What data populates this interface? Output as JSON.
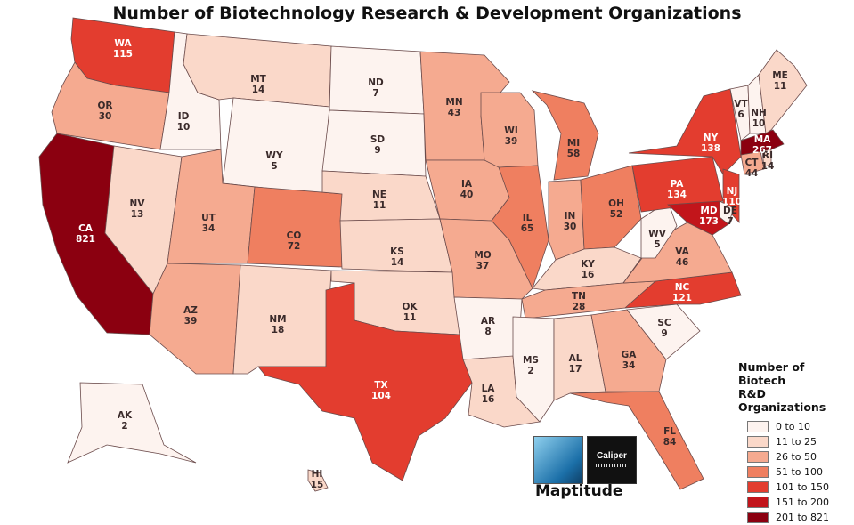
{
  "title": "Number of Biotechnology Research & Development Organizations",
  "legend": {
    "title_line1": "Number of Biotech",
    "title_line2": "R&D Organizations",
    "classes": [
      {
        "label": "0 to 10",
        "color": "#fdf3ef"
      },
      {
        "label": "11 to 25",
        "color": "#fad8c9"
      },
      {
        "label": "26 to 50",
        "color": "#f5aa90"
      },
      {
        "label": "51 to 100",
        "color": "#ef7f60"
      },
      {
        "label": "101 to 150",
        "color": "#e33d2f"
      },
      {
        "label": "151 to 200",
        "color": "#c2151b"
      },
      {
        "label": "201 to 821",
        "color": "#8b0010"
      }
    ]
  },
  "logos": {
    "maptitude_wordmark": "Maptitude",
    "caliper_wordmark": "Caliper"
  },
  "chart_data": {
    "type": "choropleth",
    "variable": "Number of Biotech R&D Organizations",
    "states": [
      {
        "abbr": "WA",
        "value": 115
      },
      {
        "abbr": "OR",
        "value": 30
      },
      {
        "abbr": "CA",
        "value": 821
      },
      {
        "abbr": "ID",
        "value": 10
      },
      {
        "abbr": "NV",
        "value": 13
      },
      {
        "abbr": "MT",
        "value": 14
      },
      {
        "abbr": "WY",
        "value": 5
      },
      {
        "abbr": "UT",
        "value": 34
      },
      {
        "abbr": "AZ",
        "value": 39
      },
      {
        "abbr": "CO",
        "value": 72
      },
      {
        "abbr": "NM",
        "value": 18
      },
      {
        "abbr": "ND",
        "value": 7
      },
      {
        "abbr": "SD",
        "value": 9
      },
      {
        "abbr": "NE",
        "value": 11
      },
      {
        "abbr": "KS",
        "value": 14
      },
      {
        "abbr": "OK",
        "value": 11
      },
      {
        "abbr": "TX",
        "value": 104
      },
      {
        "abbr": "MN",
        "value": 43
      },
      {
        "abbr": "IA",
        "value": 40
      },
      {
        "abbr": "MO",
        "value": 37
      },
      {
        "abbr": "AR",
        "value": 8
      },
      {
        "abbr": "LA",
        "value": 16
      },
      {
        "abbr": "WI",
        "value": 39
      },
      {
        "abbr": "IL",
        "value": 65
      },
      {
        "abbr": "MI",
        "value": 58
      },
      {
        "abbr": "IN",
        "value": 30
      },
      {
        "abbr": "OH",
        "value": 52
      },
      {
        "abbr": "KY",
        "value": 16
      },
      {
        "abbr": "TN",
        "value": 28
      },
      {
        "abbr": "MS",
        "value": 2
      },
      {
        "abbr": "AL",
        "value": 17
      },
      {
        "abbr": "GA",
        "value": 34
      },
      {
        "abbr": "FL",
        "value": 84
      },
      {
        "abbr": "SC",
        "value": 9
      },
      {
        "abbr": "NC",
        "value": 121
      },
      {
        "abbr": "VA",
        "value": 46
      },
      {
        "abbr": "WV",
        "value": 5
      },
      {
        "abbr": "PA",
        "value": 134
      },
      {
        "abbr": "NY",
        "value": 138
      },
      {
        "abbr": "NJ",
        "value": 110
      },
      {
        "abbr": "DE",
        "value": 7
      },
      {
        "abbr": "MD",
        "value": 173
      },
      {
        "abbr": "CT",
        "value": 44
      },
      {
        "abbr": "RI",
        "value": 14
      },
      {
        "abbr": "MA",
        "value": 267
      },
      {
        "abbr": "VT",
        "value": 6
      },
      {
        "abbr": "NH",
        "value": 10
      },
      {
        "abbr": "ME",
        "value": 11
      },
      {
        "abbr": "AK",
        "value": 2
      },
      {
        "abbr": "HI",
        "value": 15
      }
    ]
  }
}
